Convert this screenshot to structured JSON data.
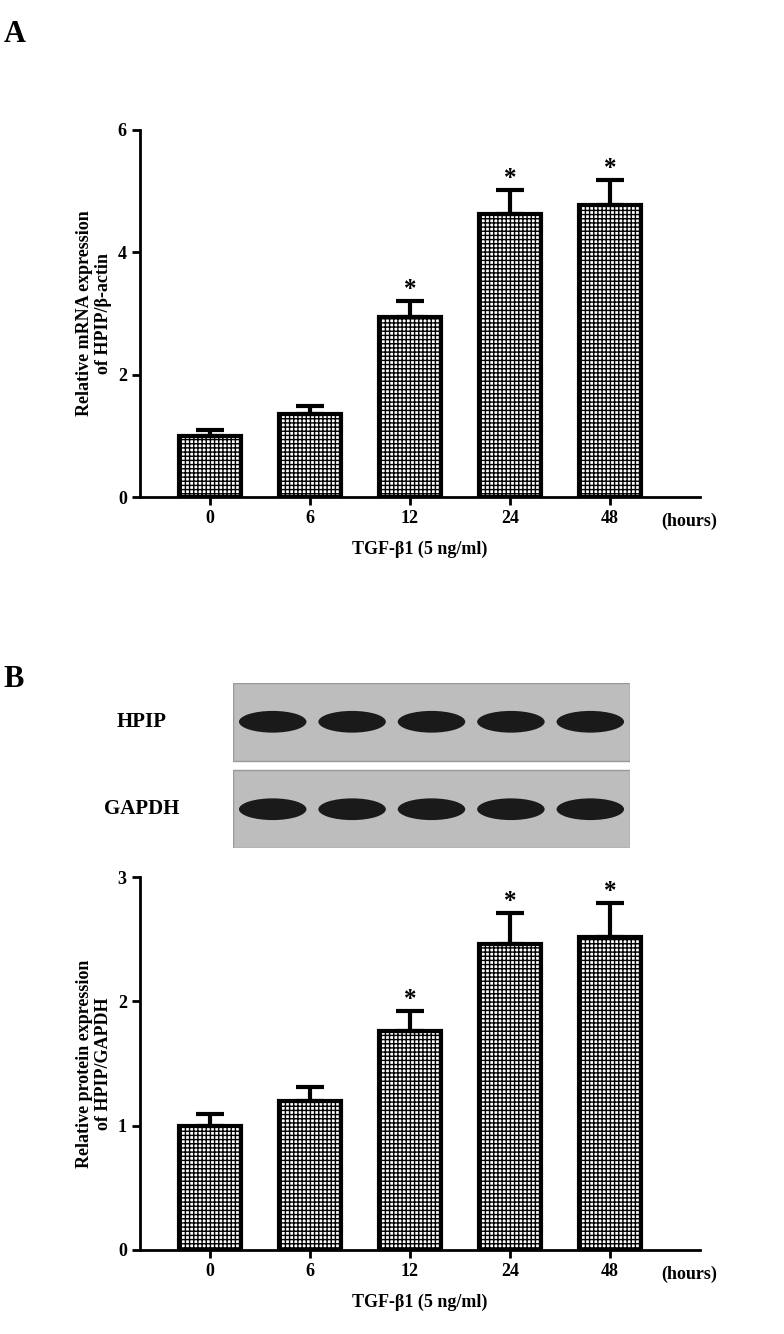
{
  "chart_data": [
    {
      "type": "bar",
      "panel": "A",
      "categories": [
        "0",
        "6",
        "12",
        "24",
        "48"
      ],
      "values": [
        1.0,
        1.35,
        2.95,
        4.62,
        4.77
      ],
      "error": [
        0.1,
        0.13,
        0.25,
        0.4,
        0.42
      ],
      "significance": [
        null,
        null,
        "*",
        "*",
        "*"
      ],
      "y_label": "Relative mRNA expression\nof HPIP/β-actin",
      "x_label": "TGF-β1 (5 ng/ml)",
      "x_unit": "(hours)",
      "ylim": [
        0,
        6
      ],
      "yticks": [
        0,
        2,
        4,
        6
      ],
      "color": "#ffffff",
      "grid": false
    },
    {
      "type": "bar",
      "panel": "B",
      "blot": {
        "rows": [
          "HPIP",
          "GAPDH"
        ]
      },
      "categories": [
        "0",
        "6",
        "12",
        "24",
        "48"
      ],
      "values": [
        1.0,
        1.2,
        1.76,
        2.46,
        2.52
      ],
      "error": [
        0.09,
        0.11,
        0.16,
        0.25,
        0.27
      ],
      "significance": [
        null,
        null,
        "*",
        "*",
        "*"
      ],
      "y_label": "Relative protein expression\nof HPIP/GAPDH",
      "x_label": "TGF-β1 (5 ng/ml)",
      "x_unit": "(hours)",
      "ylim": [
        0,
        3
      ],
      "yticks": [
        0,
        1,
        2,
        3
      ],
      "color": "#ffffff",
      "grid": false
    }
  ]
}
